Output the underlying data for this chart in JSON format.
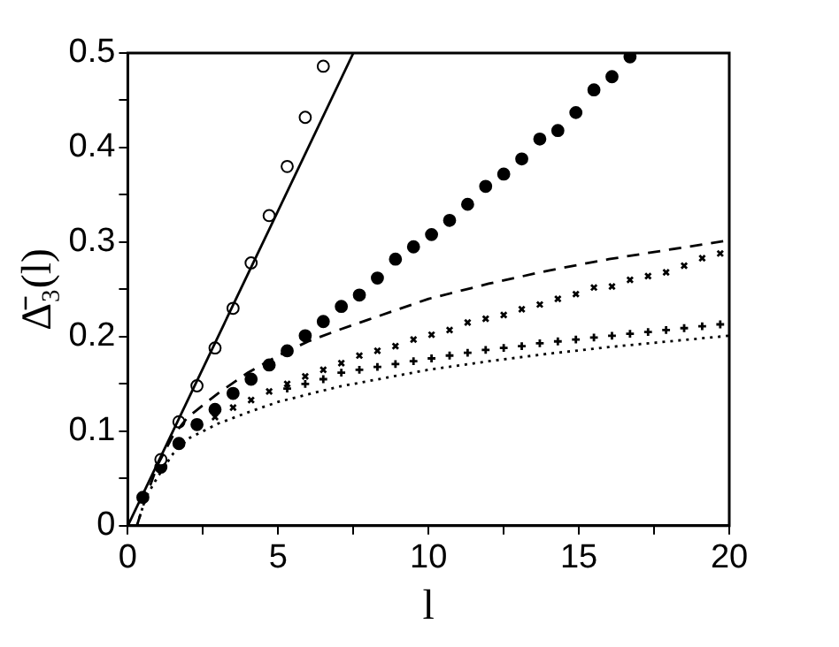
{
  "chart_data": {
    "type": "scatter",
    "xlabel": "l",
    "ylabel": "Δ̄₃(l)",
    "xlim": [
      0,
      20
    ],
    "ylim": [
      0,
      0.5
    ],
    "xticks": [
      0,
      {
        "value": 2.5,
        "label": null
      },
      5,
      {
        "value": 7.5,
        "label": null
      },
      10,
      {
        "value": 12.5,
        "label": null
      },
      15,
      {
        "value": 17.5,
        "label": null
      },
      20
    ],
    "yticks": [
      0,
      {
        "value": 0.05,
        "label": null
      },
      0.1,
      {
        "value": 0.15,
        "label": null
      },
      0.2,
      {
        "value": 0.25,
        "label": null
      },
      0.3,
      {
        "value": 0.35,
        "label": null
      },
      0.4,
      {
        "value": 0.45,
        "label": null
      },
      0.5
    ],
    "grid": false,
    "legend": false,
    "series": [
      {
        "type": "line",
        "color": "#000000",
        "line_style": "solid",
        "marker": "none",
        "x": [
          0,
          7.5
        ],
        "values": [
          0,
          0.5
        ]
      },
      {
        "type": "line",
        "color": "#000000",
        "line_style": "dashed",
        "marker": "none",
        "x": [
          0.3,
          0.6,
          1,
          1.5,
          2,
          3,
          4,
          5,
          6,
          7,
          8,
          10,
          12,
          14,
          16,
          18,
          20
        ],
        "values": [
          0,
          0.03,
          0.065,
          0.095,
          0.115,
          0.14,
          0.162,
          0.18,
          0.195,
          0.207,
          0.218,
          0.24,
          0.256,
          0.27,
          0.282,
          0.292,
          0.302
        ]
      },
      {
        "type": "line",
        "color": "#000000",
        "line_style": "dotted",
        "marker": "none",
        "x": [
          0.3,
          0.6,
          1,
          1.5,
          2,
          3,
          4,
          5,
          6,
          7,
          8,
          10,
          12,
          14,
          16,
          18,
          20
        ],
        "values": [
          0,
          0.03,
          0.052,
          0.076,
          0.092,
          0.108,
          0.12,
          0.131,
          0.139,
          0.147,
          0.153,
          0.165,
          0.174,
          0.182,
          0.189,
          0.195,
          0.201
        ]
      },
      {
        "color": "#000000",
        "marker": "circle",
        "x": [
          1.1,
          1.7,
          2.3,
          2.9,
          3.5,
          4.1,
          4.7,
          5.3,
          5.9,
          6.5
        ],
        "values": [
          0.07,
          0.11,
          0.148,
          0.188,
          0.23,
          0.278,
          0.328,
          0.38,
          0.432,
          0.486
        ]
      },
      {
        "color": "#000000",
        "marker": "circle",
        "x": [
          0.5,
          1.1,
          1.7,
          2.3,
          2.9,
          3.5,
          4.1,
          4.7,
          5.3,
          5.9,
          6.5,
          7.1,
          7.7,
          8.3,
          8.9,
          9.5,
          10.1,
          10.7,
          11.3,
          11.9,
          12.5,
          13.1,
          13.7,
          14.3,
          14.9,
          15.5,
          16.1,
          16.7
        ],
        "values": [
          0.03,
          0.062,
          0.087,
          0.107,
          0.123,
          0.14,
          0.155,
          0.17,
          0.185,
          0.201,
          0.216,
          0.232,
          0.244,
          0.262,
          0.282,
          0.295,
          0.308,
          0.323,
          0.34,
          0.359,
          0.372,
          0.388,
          0.409,
          0.418,
          0.437,
          0.461,
          0.475,
          0.496
        ]
      },
      {
        "color": "#000000",
        "marker": "cross",
        "x": [
          2.9,
          3.5,
          4.1,
          4.7,
          5.3,
          5.9,
          6.5,
          7.1,
          7.7,
          8.3,
          8.9,
          9.5,
          10.1,
          10.7,
          11.3,
          11.9,
          12.5,
          13.1,
          13.7,
          14.3,
          14.9,
          15.5,
          16.1,
          16.7,
          17.3,
          17.9,
          18.5,
          19.1,
          19.7
        ],
        "values": [
          0.115,
          0.125,
          0.133,
          0.142,
          0.15,
          0.158,
          0.165,
          0.172,
          0.18,
          0.185,
          0.19,
          0.197,
          0.202,
          0.207,
          0.215,
          0.219,
          0.223,
          0.229,
          0.234,
          0.24,
          0.245,
          0.252,
          0.253,
          0.26,
          0.264,
          0.268,
          0.275,
          0.283,
          0.288
        ]
      },
      {
        "color": "#000000",
        "marker": "cross",
        "x": [
          5.3,
          5.9,
          6.5,
          7.1,
          7.7,
          8.3,
          8.9,
          9.5,
          10.1,
          10.7,
          11.3,
          11.9,
          12.5,
          13.1,
          13.7,
          14.3,
          14.9,
          15.5,
          16.1,
          16.7,
          17.3,
          17.9,
          18.5,
          19.1,
          19.7
        ],
        "values": [
          0.145,
          0.15,
          0.155,
          0.162,
          0.165,
          0.168,
          0.171,
          0.174,
          0.177,
          0.18,
          0.183,
          0.186,
          0.188,
          0.19,
          0.193,
          0.195,
          0.197,
          0.199,
          0.201,
          0.203,
          0.205,
          0.207,
          0.209,
          0.211,
          0.213
        ]
      }
    ]
  }
}
